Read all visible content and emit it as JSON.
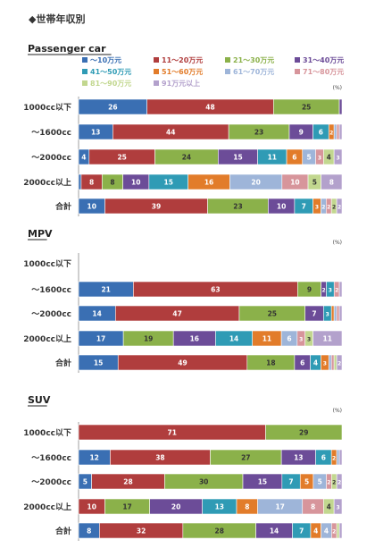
{
  "page_title": "◆世帯年収別",
  "legend": {
    "items": [
      {
        "label": "～10万元",
        "color": "#3a6fb3"
      },
      {
        "label": "11～20万元",
        "color": "#b03d3d"
      },
      {
        "label": "21～30万元",
        "color": "#8bb14a"
      },
      {
        "label": "31～40万元",
        "color": "#6c4c98"
      },
      {
        "label": "41～50万元",
        "color": "#2f9bb5"
      },
      {
        "label": "51～60万元",
        "color": "#e27c2a"
      },
      {
        "label": "61～70万元",
        "color": "#9eb5d9"
      },
      {
        "label": "71～80万元",
        "color": "#d7959b"
      },
      {
        "label": "81～90万元",
        "color": "#c2d78f"
      },
      {
        "label": "91万元以上",
        "color": "#b3a1cc"
      }
    ]
  },
  "chart_data": [
    {
      "type": "bar",
      "stacked": "percent",
      "orientation": "horizontal",
      "title": "Passenger car",
      "unit_label": "(%)",
      "categories": [
        "1000cc以下",
        "～1600cc",
        "～2000cc",
        "2000cc以上",
        "合計"
      ],
      "series": [
        {
          "name": "～10万元",
          "values": [
            26,
            13,
            4,
            1,
            10
          ]
        },
        {
          "name": "11～20万元",
          "values": [
            48,
            44,
            25,
            8,
            39
          ]
        },
        {
          "name": "21～30万元",
          "values": [
            25,
            23,
            24,
            8,
            23
          ]
        },
        {
          "name": "31～40万元",
          "values": [
            1,
            9,
            15,
            10,
            10
          ]
        },
        {
          "name": "41～50万元",
          "values": [
            0,
            6,
            11,
            15,
            7
          ]
        },
        {
          "name": "51～60万元",
          "values": [
            0,
            2,
            6,
            16,
            3
          ]
        },
        {
          "name": "61～70万元",
          "values": [
            0,
            1,
            5,
            20,
            2
          ]
        },
        {
          "name": "71～80万元",
          "values": [
            0,
            1,
            3,
            10,
            2
          ]
        },
        {
          "name": "81～90万元",
          "values": [
            0,
            0,
            4,
            5,
            2
          ]
        },
        {
          "name": "91万元以上",
          "values": [
            0,
            1,
            3,
            8,
            2
          ]
        }
      ],
      "xlim": [
        0,
        100
      ]
    },
    {
      "type": "bar",
      "stacked": "percent",
      "orientation": "horizontal",
      "title": "MPV",
      "unit_label": "(%)",
      "categories": [
        "1000cc以下",
        "～1600cc",
        "～2000cc",
        "2000cc以上",
        "合計"
      ],
      "series": [
        {
          "name": "～10万元",
          "values": [
            0,
            21,
            14,
            17,
            15
          ]
        },
        {
          "name": "11～20万元",
          "values": [
            0,
            63,
            47,
            0,
            49
          ]
        },
        {
          "name": "21～30万元",
          "values": [
            0,
            9,
            25,
            19,
            18
          ]
        },
        {
          "name": "31～40万元",
          "values": [
            0,
            2,
            7,
            16,
            6
          ]
        },
        {
          "name": "41～50万元",
          "values": [
            0,
            3,
            3,
            14,
            4
          ]
        },
        {
          "name": "51～60万元",
          "values": [
            0,
            0,
            1,
            11,
            3
          ]
        },
        {
          "name": "61～70万元",
          "values": [
            0,
            0,
            1,
            6,
            1
          ]
        },
        {
          "name": "71～80万元",
          "values": [
            0,
            2,
            1,
            3,
            1
          ]
        },
        {
          "name": "81～90万元",
          "values": [
            0,
            0,
            0,
            3,
            1
          ]
        },
        {
          "name": "91万元以上",
          "values": [
            0,
            1,
            1,
            11,
            2
          ]
        }
      ],
      "xlim": [
        0,
        100
      ]
    },
    {
      "type": "bar",
      "stacked": "percent",
      "orientation": "horizontal",
      "title": "SUV",
      "unit_label": "(%)",
      "categories": [
        "1000cc以下",
        "～1600cc",
        "～2000cc",
        "2000cc以上",
        "合計"
      ],
      "series": [
        {
          "name": "～10万元",
          "values": [
            0,
            12,
            5,
            0,
            8
          ]
        },
        {
          "name": "11～20万元",
          "values": [
            71,
            38,
            28,
            10,
            32
          ]
        },
        {
          "name": "21～30万元",
          "values": [
            29,
            27,
            30,
            17,
            28
          ]
        },
        {
          "name": "31～40万元",
          "values": [
            0,
            13,
            15,
            20,
            14
          ]
        },
        {
          "name": "41～50万元",
          "values": [
            0,
            6,
            7,
            13,
            7
          ]
        },
        {
          "name": "51～60万元",
          "values": [
            0,
            2,
            5,
            8,
            4
          ]
        },
        {
          "name": "61～70万元",
          "values": [
            0,
            1,
            5,
            17,
            4
          ]
        },
        {
          "name": "71～80万元",
          "values": [
            0,
            0,
            2,
            8,
            2
          ]
        },
        {
          "name": "81～90万元",
          "values": [
            0,
            0,
            2,
            4,
            1
          ]
        },
        {
          "name": "91万元以上",
          "values": [
            0,
            1,
            2,
            3,
            1
          ]
        }
      ],
      "xlim": [
        0,
        100
      ]
    }
  ]
}
